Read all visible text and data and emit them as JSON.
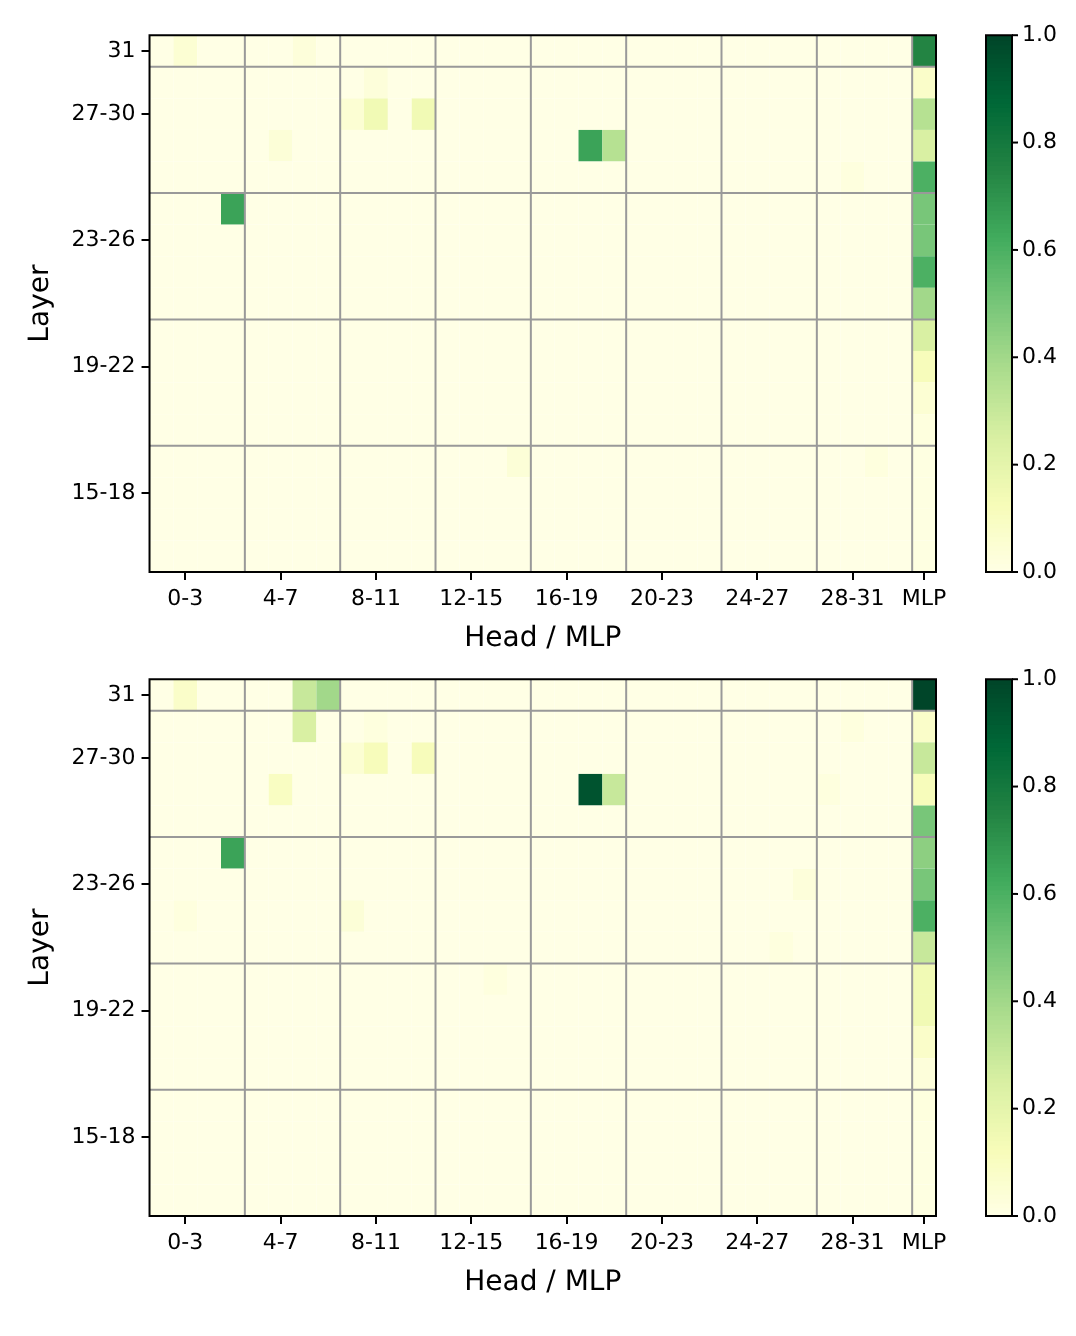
{
  "chart_data": [
    {
      "type": "heatmap",
      "xlabel": "Head / MLP",
      "ylabel": "Layer",
      "grid": true,
      "categories": [
        null,
        "0-3",
        null,
        null,
        null,
        "4-7",
        null,
        null,
        null,
        "8-11",
        null,
        null,
        null,
        "12-15",
        null,
        null,
        null,
        "16-19",
        null,
        null,
        null,
        "20-23",
        null,
        null,
        null,
        "24-27",
        null,
        null,
        null,
        "28-31",
        null,
        null,
        "MLP"
      ],
      "y_categories": [
        "31",
        null,
        "27-30",
        null,
        null,
        null,
        "23-26",
        null,
        null,
        null,
        "19-22",
        null,
        null,
        null,
        "15-18",
        null,
        null
      ],
      "cells": [
        [
          0,
          0.05,
          0,
          0,
          0,
          0,
          0.03,
          0,
          0,
          0,
          0,
          0,
          0,
          0,
          0,
          0,
          0,
          0,
          0,
          0,
          0,
          0,
          0,
          0,
          0,
          0,
          0,
          0,
          0,
          0,
          0,
          0,
          0.75
        ],
        [
          0,
          0,
          0,
          0,
          0,
          0,
          0,
          0,
          0,
          0.03,
          0,
          0,
          0,
          0,
          0,
          0,
          0,
          0,
          0,
          0,
          0,
          0,
          0,
          0,
          0,
          0,
          0,
          0,
          0,
          0,
          0,
          0,
          0.08
        ],
        [
          0,
          0,
          0,
          0,
          0,
          0,
          0,
          0,
          0.05,
          0.15,
          0,
          0.15,
          0,
          0,
          0,
          0,
          0,
          0,
          0,
          0,
          0,
          0,
          0,
          0,
          0,
          0,
          0,
          0,
          0,
          0,
          0,
          0,
          0.35
        ],
        [
          0,
          0,
          0,
          0,
          0,
          0.04,
          0,
          0,
          0,
          0,
          0,
          0,
          0,
          0,
          0,
          0,
          0,
          0,
          0.65,
          0.35,
          0,
          0,
          0,
          0,
          0,
          0,
          0,
          0,
          0,
          0,
          0,
          0,
          0.25
        ],
        [
          0,
          0,
          0,
          0,
          0,
          0,
          0,
          0,
          0,
          0,
          0,
          0,
          0,
          0,
          0,
          0,
          0,
          0,
          0,
          0,
          0,
          0,
          0,
          0,
          0,
          0,
          0,
          0,
          0,
          0.02,
          0,
          0,
          0.6
        ],
        [
          0,
          0,
          0,
          0.65,
          0,
          0,
          0,
          0,
          0,
          0,
          0,
          0,
          0,
          0,
          0,
          0,
          0,
          0,
          0,
          0,
          0,
          0,
          0,
          0,
          0,
          0,
          0,
          0,
          0,
          0,
          0,
          0,
          0.5
        ],
        [
          0,
          0,
          0,
          0,
          0,
          0,
          0,
          0,
          0,
          0,
          0,
          0,
          0,
          0,
          0,
          0,
          0,
          0,
          0,
          0,
          0,
          0,
          0,
          0,
          0,
          0,
          0,
          0,
          0,
          0,
          0,
          0,
          0.5
        ],
        [
          0,
          0,
          0,
          0,
          0,
          0,
          0,
          0,
          0,
          0,
          0,
          0,
          0,
          0,
          0,
          0,
          0,
          0,
          0,
          0,
          0,
          0,
          0,
          0,
          0,
          0,
          0,
          0,
          0,
          0,
          0,
          0,
          0.6
        ],
        [
          0,
          0,
          0,
          0,
          0,
          0,
          0,
          0,
          0,
          0,
          0,
          0,
          0,
          0,
          0,
          0,
          0,
          0,
          0,
          0,
          0,
          0,
          0,
          0,
          0,
          0,
          0,
          0,
          0,
          0,
          0,
          0,
          0.4
        ],
        [
          0,
          0,
          0,
          0,
          0,
          0,
          0,
          0,
          0,
          0,
          0,
          0,
          0,
          0,
          0,
          0,
          0,
          0,
          0,
          0,
          0,
          0,
          0,
          0,
          0,
          0,
          0,
          0,
          0,
          0,
          0,
          0,
          0.25
        ],
        [
          0,
          0,
          0,
          0,
          0,
          0,
          0,
          0,
          0,
          0,
          0,
          0,
          0,
          0,
          0,
          0,
          0,
          0,
          0,
          0,
          0,
          0,
          0,
          0,
          0,
          0,
          0,
          0,
          0,
          0,
          0,
          0,
          0.12
        ],
        [
          0,
          0,
          0,
          0,
          0,
          0,
          0,
          0,
          0,
          0,
          0,
          0,
          0,
          0,
          0,
          0,
          0,
          0,
          0,
          0,
          0,
          0,
          0,
          0,
          0,
          0,
          0,
          0,
          0,
          0,
          0,
          0,
          0.05
        ],
        [
          0,
          0,
          0,
          0,
          0,
          0,
          0,
          0,
          0,
          0,
          0,
          0,
          0,
          0,
          0,
          0,
          0,
          0,
          0,
          0,
          0,
          0,
          0,
          0,
          0,
          0,
          0,
          0,
          0,
          0,
          0,
          0,
          0.02
        ],
        [
          0,
          0,
          0,
          0,
          0,
          0,
          0,
          0,
          0,
          0,
          0,
          0,
          0,
          0,
          0,
          0.04,
          0,
          0,
          0,
          0,
          0,
          0,
          0,
          0,
          0,
          0,
          0,
          0,
          0,
          0,
          0.02,
          0,
          0.01
        ],
        [
          0,
          0,
          0,
          0,
          0,
          0,
          0,
          0,
          0,
          0,
          0,
          0,
          0,
          0,
          0,
          0,
          0,
          0,
          0,
          0,
          0,
          0,
          0,
          0,
          0,
          0,
          0,
          0,
          0,
          0,
          0,
          0,
          0.01
        ],
        [
          0,
          0,
          0,
          0,
          0,
          0,
          0,
          0,
          0,
          0,
          0,
          0,
          0,
          0,
          0,
          0,
          0,
          0,
          0,
          0,
          0,
          0,
          0,
          0,
          0,
          0,
          0,
          0,
          0,
          0,
          0,
          0,
          0.01
        ],
        [
          0,
          0,
          0,
          0,
          0,
          0,
          0,
          0,
          0,
          0,
          0,
          0,
          0,
          0,
          0,
          0,
          0,
          0,
          0,
          0,
          0,
          0,
          0,
          0,
          0,
          0,
          0,
          0,
          0,
          0,
          0,
          0,
          0.01
        ]
      ],
      "clim": [
        0,
        1
      ],
      "cticks": [
        {
          "value": 0,
          "label": "0.0"
        },
        {
          "value": 0.2,
          "label": "0.2"
        },
        {
          "value": 0.4,
          "label": "0.4"
        },
        {
          "value": 0.6,
          "label": "0.6"
        },
        {
          "value": 0.8,
          "label": "0.8"
        },
        {
          "value": 1,
          "label": "1.0"
        }
      ]
    },
    {
      "type": "heatmap",
      "xlabel": "Head / MLP",
      "ylabel": "Layer",
      "grid": true,
      "categories": [
        null,
        "0-3",
        null,
        null,
        null,
        "4-7",
        null,
        null,
        null,
        "8-11",
        null,
        null,
        null,
        "12-15",
        null,
        null,
        null,
        "16-19",
        null,
        null,
        null,
        "20-23",
        null,
        null,
        null,
        "24-27",
        null,
        null,
        null,
        "28-31",
        null,
        null,
        "MLP"
      ],
      "y_categories": [
        "31",
        null,
        "27-30",
        null,
        null,
        null,
        "23-26",
        null,
        null,
        null,
        "19-22",
        null,
        null,
        null,
        "15-18",
        null,
        null
      ],
      "cells": [
        [
          0,
          0.08,
          0,
          0,
          0,
          0,
          0.3,
          0.4,
          0,
          0,
          0,
          0,
          0,
          0,
          0,
          0,
          0,
          0,
          0,
          0,
          0,
          0,
          0,
          0,
          0,
          0,
          0,
          0,
          0,
          0,
          0,
          0,
          1
        ],
        [
          0,
          0,
          0,
          0,
          0,
          0,
          0.25,
          0,
          0,
          0.02,
          0,
          0,
          0,
          0,
          0,
          0,
          0,
          0,
          0,
          0,
          0,
          0,
          0,
          0,
          0,
          0,
          0,
          0,
          0,
          0.02,
          0,
          0,
          0.08
        ],
        [
          0,
          0,
          0,
          0,
          0,
          0,
          0,
          0,
          0.05,
          0.12,
          0,
          0.12,
          0,
          0,
          0,
          0,
          0,
          0,
          0,
          0,
          0,
          0,
          0,
          0,
          0,
          0,
          0,
          0,
          0,
          0,
          0,
          0,
          0.3
        ],
        [
          0,
          0,
          0,
          0,
          0,
          0.1,
          0,
          0,
          0,
          0,
          0,
          0,
          0,
          0,
          0,
          0,
          0,
          0,
          0.95,
          0.3,
          0,
          0,
          0,
          0,
          0,
          0,
          0,
          0,
          0.02,
          0,
          0,
          0,
          0.12
        ],
        [
          0,
          0,
          0,
          0,
          0,
          0,
          0,
          0,
          0,
          0,
          0,
          0,
          0,
          0,
          0,
          0,
          0,
          0,
          0,
          0,
          0,
          0,
          0,
          0,
          0,
          0,
          0,
          0,
          0,
          0,
          0,
          0,
          0.5
        ],
        [
          0,
          0,
          0,
          0.65,
          0,
          0,
          0,
          0,
          0,
          0,
          0,
          0,
          0,
          0,
          0,
          0,
          0,
          0,
          0,
          0,
          0,
          0,
          0,
          0,
          0,
          0,
          0,
          0,
          0,
          0,
          0,
          0,
          0.45
        ],
        [
          0,
          0,
          0,
          0,
          0,
          0,
          0,
          0,
          0,
          0,
          0,
          0,
          0,
          0,
          0,
          0,
          0,
          0,
          0,
          0,
          0,
          0,
          0,
          0,
          0,
          0,
          0,
          0.03,
          0,
          0,
          0,
          0,
          0.5
        ],
        [
          0,
          0.02,
          0,
          0,
          0,
          0,
          0,
          0,
          0.04,
          0,
          0,
          0,
          0,
          0,
          0,
          0,
          0,
          0,
          0,
          0,
          0,
          0,
          0,
          0,
          0,
          0,
          0,
          0,
          0,
          0,
          0,
          0,
          0.6
        ],
        [
          0,
          0,
          0,
          0,
          0,
          0,
          0,
          0,
          0,
          0,
          0,
          0,
          0,
          0,
          0,
          0,
          0,
          0,
          0,
          0,
          0,
          0,
          0,
          0,
          0,
          0,
          0.02,
          0,
          0,
          0,
          0,
          0,
          0.3
        ],
        [
          0,
          0,
          0,
          0,
          0,
          0,
          0,
          0,
          0,
          0,
          0,
          0,
          0,
          0,
          0.02,
          0,
          0,
          0,
          0,
          0,
          0,
          0,
          0,
          0,
          0,
          0,
          0,
          0,
          0,
          0,
          0,
          0,
          0.15
        ],
        [
          0,
          0,
          0,
          0,
          0,
          0,
          0,
          0,
          0,
          0,
          0,
          0,
          0,
          0,
          0,
          0,
          0,
          0,
          0,
          0,
          0,
          0,
          0,
          0,
          0,
          0,
          0,
          0,
          0,
          0,
          0,
          0,
          0.15
        ],
        [
          0,
          0,
          0,
          0,
          0,
          0,
          0,
          0,
          0,
          0,
          0,
          0,
          0,
          0,
          0,
          0,
          0,
          0,
          0,
          0,
          0,
          0,
          0,
          0,
          0,
          0,
          0,
          0,
          0,
          0,
          0,
          0,
          0.08
        ],
        [
          0,
          0,
          0,
          0,
          0,
          0,
          0,
          0,
          0,
          0,
          0,
          0,
          0,
          0,
          0,
          0,
          0,
          0,
          0,
          0,
          0,
          0,
          0,
          0,
          0,
          0,
          0,
          0,
          0,
          0,
          0,
          0,
          0.03
        ],
        [
          0,
          0,
          0,
          0,
          0,
          0,
          0,
          0,
          0,
          0,
          0,
          0,
          0,
          0,
          0,
          0,
          0,
          0,
          0,
          0,
          0,
          0,
          0,
          0,
          0,
          0,
          0,
          0,
          0,
          0,
          0,
          0,
          0.02
        ],
        [
          0,
          0,
          0,
          0,
          0,
          0,
          0,
          0,
          0,
          0,
          0,
          0,
          0,
          0,
          0,
          0,
          0,
          0,
          0,
          0,
          0,
          0,
          0,
          0,
          0,
          0,
          0,
          0,
          0,
          0,
          0,
          0,
          0.01
        ],
        [
          0,
          0,
          0,
          0,
          0,
          0,
          0,
          0,
          0,
          0,
          0,
          0,
          0,
          0,
          0,
          0,
          0,
          0,
          0,
          0,
          0,
          0,
          0,
          0,
          0,
          0,
          0,
          0,
          0,
          0,
          0,
          0,
          0.01
        ],
        [
          0,
          0,
          0,
          0,
          0,
          0,
          0,
          0,
          0,
          0,
          0,
          0,
          0,
          0,
          0,
          0,
          0,
          0,
          0,
          0,
          0,
          0,
          0,
          0,
          0,
          0,
          0,
          0,
          0,
          0,
          0,
          0,
          0.01
        ]
      ],
      "clim": [
        0,
        1
      ],
      "cticks": [
        {
          "value": 0,
          "label": "0.0"
        },
        {
          "value": 0.2,
          "label": "0.2"
        },
        {
          "value": 0.4,
          "label": "0.4"
        },
        {
          "value": 0.6,
          "label": "0.6"
        },
        {
          "value": 0.8,
          "label": "0.8"
        },
        {
          "value": 1,
          "label": "1.0"
        }
      ]
    }
  ]
}
